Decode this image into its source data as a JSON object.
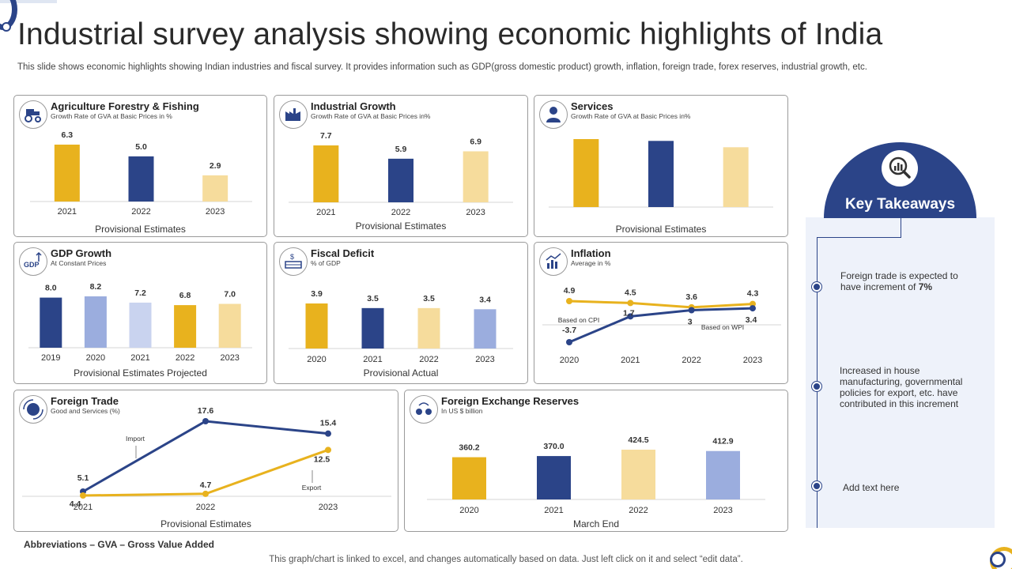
{
  "page": {
    "title": "Industrial survey analysis showing economic highlights of India",
    "subtitle": "This slide shows economic highlights showing Indian industries and fiscal survey. It provides information such as GDP(gross domestic product) growth, inflation, foreign trade, forex reserves, industrial growth, etc.",
    "abbreviations": "Abbreviations – GVA – Gross Value Added",
    "footnote": "This graph/chart is linked to excel,  and changes automatically based on data. Just left click on it and select “edit data”."
  },
  "colors": {
    "navy": "#2b4488",
    "gold": "#e8b21e",
    "light_gold": "#f6dc9c",
    "light_blue": "#9badde",
    "pale_blue": "#c9d3ef"
  },
  "icons": {
    "agriculture": "tractor-icon",
    "industrial": "factory-icon",
    "services": "person-icon",
    "gdp": "gdp-arrow-icon",
    "fiscal": "money-icon",
    "inflation": "chart-growth-icon",
    "foreign_trade": "globe-exchange-icon",
    "forex": "currency-exchange-icon",
    "takeaways": "magnifier-chart-icon"
  },
  "panels": {
    "agriculture": {
      "title": "Agriculture Forestry & Fishing",
      "subtitle": "Growth  Rate of GVA at Basic Prices in  %",
      "footer": "Provisional Estimates"
    },
    "industrial": {
      "title": "Industrial Growth",
      "subtitle": "Growth  Rate of GVA at Basic Prices in%",
      "footer": "Provisional Estimates"
    },
    "services": {
      "title": "Services",
      "subtitle": "Growth  Rate of GVA at Basic Prices in%",
      "footer": "Provisional Estimates"
    },
    "gdp": {
      "title": "GDP Growth",
      "subtitle": "At Constant Prices",
      "footer": "Provisional Estimates Projected"
    },
    "fiscal": {
      "title": "Fiscal Deficit",
      "subtitle": "% of GDP",
      "footer": "Provisional Actual"
    },
    "inflation": {
      "title": "Inflation",
      "subtitle": "Average in %"
    },
    "foreign_trade": {
      "title": "Foreign Trade",
      "subtitle": "Good and Services  (%)",
      "footer": "Provisional Estimates"
    },
    "forex": {
      "title": "Foreign Exchange Reserves",
      "subtitle": "In US $ billion",
      "footer": "March End"
    }
  },
  "takeaways": {
    "title": "Key Takeaways",
    "items": [
      {
        "text": "Foreign trade is expected to have increment of ",
        "bold": "7%"
      },
      {
        "text": "Increased in house manufacturing, governmental policies for export, etc. have contributed in this increment"
      },
      {
        "text": "Add text here"
      }
    ]
  },
  "chart_data": [
    {
      "id": "agriculture",
      "type": "bar",
      "categories": [
        "2021",
        "2022",
        "2023"
      ],
      "values": [
        6.3,
        5.0,
        2.9
      ],
      "value_labels": [
        "6.3",
        "5.0",
        "2.9"
      ],
      "colors": [
        "#e8b21e",
        "#2b4488",
        "#f6dc9c"
      ],
      "ylim": [
        0,
        7
      ]
    },
    {
      "id": "industrial",
      "type": "bar",
      "categories": [
        "2021",
        "2022",
        "2023"
      ],
      "values": [
        7.7,
        5.9,
        6.9
      ],
      "value_labels": [
        "7.7",
        "5.9",
        "6.9"
      ],
      "colors": [
        "#e8b21e",
        "#2b4488",
        "#f6dc9c"
      ],
      "ylim": [
        0,
        8
      ]
    },
    {
      "id": "services",
      "type": "bar",
      "categories": [
        "",
        "",
        ""
      ],
      "values": [
        7.5,
        7.3,
        6.6
      ],
      "value_labels": [
        "",
        "",
        ""
      ],
      "colors": [
        "#e8b21e",
        "#2b4488",
        "#f6dc9c"
      ],
      "ylim": [
        0,
        8
      ]
    },
    {
      "id": "gdp",
      "type": "bar",
      "categories": [
        "2019",
        "2020",
        "2021",
        "2022",
        "2023"
      ],
      "values": [
        8.0,
        8.2,
        7.2,
        6.8,
        7.0
      ],
      "value_labels": [
        "8.0",
        "8.2",
        "7.2",
        "6.8",
        "7.0"
      ],
      "colors": [
        "#2b4488",
        "#9badde",
        "#c9d3ef",
        "#e8b21e",
        "#f6dc9c"
      ],
      "ylim": [
        0,
        8.5
      ]
    },
    {
      "id": "fiscal",
      "type": "bar",
      "categories": [
        "2020",
        "2021",
        "2022",
        "2023"
      ],
      "values": [
        3.9,
        3.5,
        3.5,
        3.4
      ],
      "value_labels": [
        "3.9",
        "3.5",
        "3.5",
        "3.4"
      ],
      "colors": [
        "#e8b21e",
        "#2b4488",
        "#f6dc9c",
        "#9badde"
      ],
      "ylim": [
        0,
        4.5
      ]
    },
    {
      "id": "inflation",
      "type": "line",
      "x": [
        "2020",
        "2021",
        "2022",
        "2023"
      ],
      "series": [
        {
          "name": "Based on CPI",
          "values": [
            4.9,
            4.5,
            3.6,
            4.3
          ],
          "labels": [
            "4.9",
            "4.5",
            "3.6",
            "4.3"
          ],
          "color": "#e8b21e"
        },
        {
          "name": "Based on WPI",
          "values": [
            -3.7,
            1.7,
            3,
            3.4
          ],
          "labels": [
            "-3.7",
            "1.7",
            "3",
            "3.4"
          ],
          "color": "#2b4488"
        }
      ],
      "ylim": [
        -4.5,
        5.5
      ]
    },
    {
      "id": "foreign_trade",
      "type": "line",
      "x": [
        "2021",
        "2022",
        "2023"
      ],
      "series": [
        {
          "name": "Import",
          "values": [
            5.1,
            17.6,
            15.4
          ],
          "labels": [
            "5.1",
            "17.6",
            "15.4"
          ],
          "color": "#2b4488"
        },
        {
          "name": "Export",
          "values": [
            4.4,
            4.7,
            12.5
          ],
          "labels": [
            "4.4",
            "4.7",
            "12.5"
          ],
          "color": "#e8b21e"
        }
      ],
      "ylim": [
        0,
        20
      ]
    },
    {
      "id": "forex",
      "type": "bar",
      "categories": [
        "2020",
        "2021",
        "2022",
        "2023"
      ],
      "values": [
        360.2,
        370.0,
        424.5,
        412.9
      ],
      "value_labels": [
        "360.2",
        "370.0",
        "424.5",
        "412.9"
      ],
      "colors": [
        "#e8b21e",
        "#2b4488",
        "#f6dc9c",
        "#9badde"
      ],
      "ylim": [
        0,
        450
      ]
    }
  ]
}
